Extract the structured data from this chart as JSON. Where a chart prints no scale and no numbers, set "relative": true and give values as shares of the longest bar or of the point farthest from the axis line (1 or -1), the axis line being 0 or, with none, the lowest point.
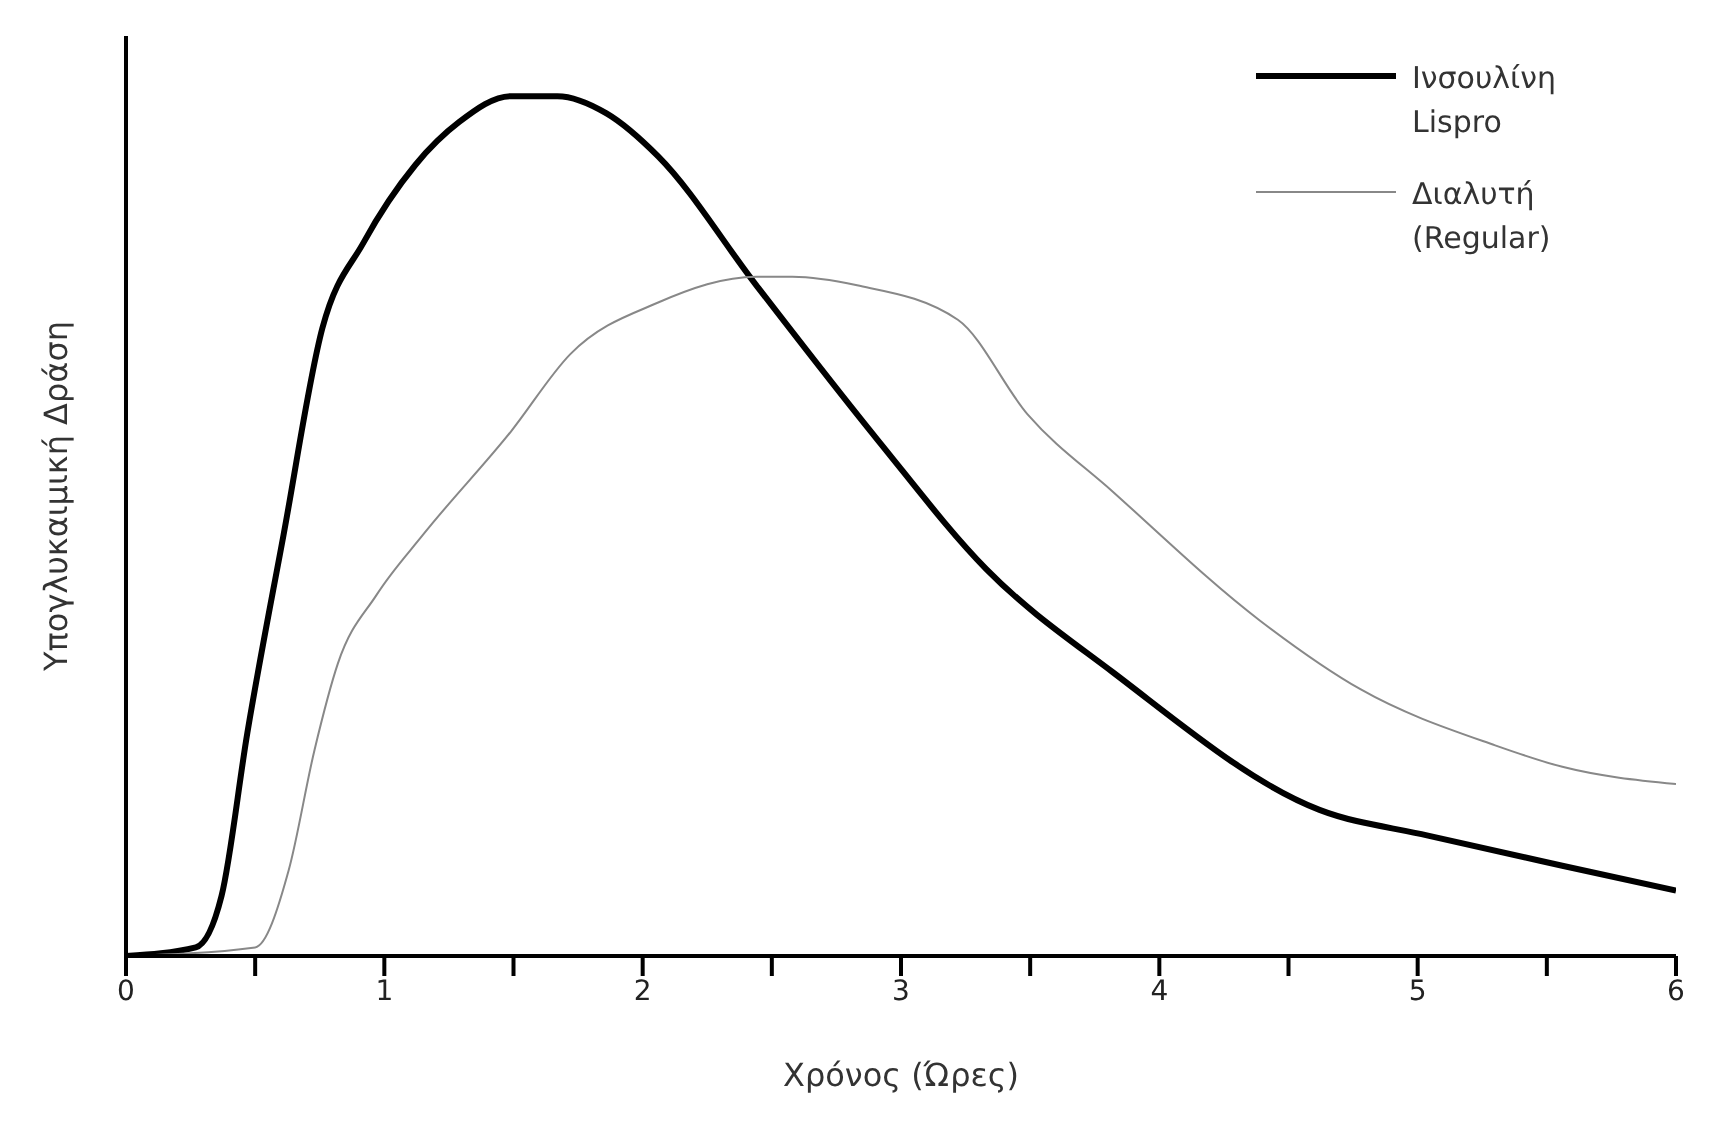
{
  "chart_data": {
    "type": "line",
    "relative": true,
    "xlabel": "Χρόνος (Ώρες)",
    "ylabel": "Υπογλυκαιμική Δράση",
    "xlim": [
      0,
      6
    ],
    "xticks": [
      0,
      {
        "value": 0.5,
        "label": null
      },
      1,
      {
        "value": 1.5,
        "label": null
      },
      2,
      {
        "value": 2.5,
        "label": null
      },
      3,
      {
        "value": 3.5,
        "label": null
      },
      4,
      {
        "value": 4.5,
        "label": null
      },
      5,
      {
        "value": 5.5,
        "label": null
      },
      6
    ],
    "legend": "top right",
    "grid": false,
    "marker": "none",
    "line_style": "solid",
    "series": [
      {
        "name": "Ινσουλίνη Lispro",
        "color": "#000000",
        "x": [
          0,
          0.27,
          0.37,
          0.47,
          0.61,
          0.76,
          0.92,
          1.12,
          1.29,
          1.49,
          1.67,
          1.86,
          2.06,
          2.44,
          2.91,
          3.33,
          3.82,
          4.62,
          5.04,
          5.56,
          6
        ],
        "values": [
          0,
          0.01,
          0.07,
          0.26,
          0.49,
          0.73,
          0.83,
          0.92,
          0.97,
          1,
          1,
          0.98,
          0.93,
          0.78,
          0.6,
          0.45,
          0.33,
          0.17,
          0.14,
          0.105,
          0.076
        ]
      },
      {
        "name": "Διαλυτή (Regular)",
        "color": "#888888",
        "x": [
          0,
          0.5,
          0.63,
          0.73,
          0.82,
          0.97,
          1.15,
          1.49,
          1.72,
          2.06,
          2.44,
          2.58,
          2.83,
          3.22,
          3.49,
          3.82,
          4.39,
          4.78,
          5.3,
          5.56,
          6
        ],
        "values": [
          0,
          0.01,
          0.1,
          0.24,
          0.34,
          0.42,
          0.49,
          0.61,
          0.7,
          0.76,
          0.79,
          0.79,
          0.78,
          0.74,
          0.63,
          0.54,
          0.39,
          0.31,
          0.245,
          0.22,
          0.2
        ]
      }
    ]
  }
}
